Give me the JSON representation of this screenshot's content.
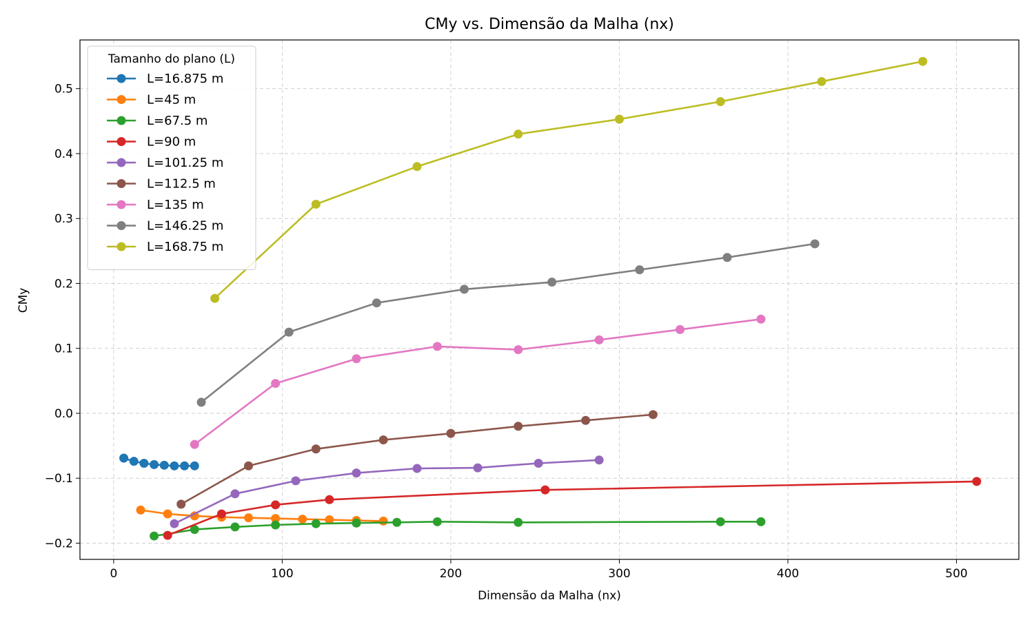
{
  "chart_data": {
    "type": "line",
    "title": "CMy vs. Dimensão da Malha (nx)",
    "xlabel": "Dimensão da Malha (nx)",
    "ylabel": "CMy",
    "xlim": [
      -20,
      537
    ],
    "ylim": [
      -0.225,
      0.575
    ],
    "xticks": [
      0,
      100,
      200,
      300,
      400,
      500
    ],
    "xtick_labels": [
      "0",
      "100",
      "200",
      "300",
      "400",
      "500"
    ],
    "yticks": [
      -0.2,
      -0.1,
      0.0,
      0.1,
      0.2,
      0.3,
      0.4,
      0.5
    ],
    "ytick_labels": [
      "−0.2",
      "−0.1",
      "0.0",
      "0.1",
      "0.2",
      "0.3",
      "0.4",
      "0.5"
    ],
    "grid": true,
    "legend": {
      "title": "Tamanho do plano (L)",
      "placement": "top-left"
    },
    "series": [
      {
        "name": "L=16.875 m",
        "color": "#1f77b4",
        "x": [
          6,
          12,
          18,
          24,
          30,
          36,
          42,
          48
        ],
        "y": [
          -0.069,
          -0.074,
          -0.077,
          -0.079,
          -0.08,
          -0.081,
          -0.081,
          -0.081
        ]
      },
      {
        "name": "L=45 m",
        "color": "#ff7f0e",
        "x": [
          16,
          32,
          48,
          64,
          80,
          96,
          112,
          128,
          144,
          160
        ],
        "y": [
          -0.149,
          -0.155,
          -0.158,
          -0.16,
          -0.161,
          -0.162,
          -0.163,
          -0.164,
          -0.165,
          -0.166
        ]
      },
      {
        "name": "L=67.5 m",
        "color": "#2ca02c",
        "x": [
          24,
          48,
          72,
          96,
          120,
          144,
          168,
          192,
          240,
          360,
          384
        ],
        "y": [
          -0.189,
          -0.179,
          -0.175,
          -0.172,
          -0.17,
          -0.169,
          -0.168,
          -0.167,
          -0.168,
          -0.167,
          -0.167
        ]
      },
      {
        "name": "L=90 m",
        "color": "#d62728",
        "x": [
          32,
          64,
          96,
          128,
          256,
          512
        ],
        "y": [
          -0.188,
          -0.155,
          -0.141,
          -0.133,
          -0.118,
          -0.105
        ]
      },
      {
        "name": "L=101.25 m",
        "color": "#9467bd",
        "x": [
          36,
          72,
          108,
          144,
          180,
          216,
          252,
          288
        ],
        "y": [
          -0.17,
          -0.124,
          -0.104,
          -0.092,
          -0.085,
          -0.084,
          -0.077,
          -0.072
        ]
      },
      {
        "name": "L=112.5 m",
        "color": "#8c564b",
        "x": [
          40,
          80,
          120,
          160,
          200,
          240,
          280,
          320
        ],
        "y": [
          -0.14,
          -0.081,
          -0.055,
          -0.041,
          -0.031,
          -0.02,
          -0.011,
          -0.002
        ]
      },
      {
        "name": "L=135 m",
        "color": "#e377c2",
        "x": [
          48,
          96,
          144,
          192,
          240,
          288,
          336,
          384
        ],
        "y": [
          -0.048,
          0.046,
          0.084,
          0.103,
          0.098,
          0.113,
          0.129,
          0.145
        ]
      },
      {
        "name": "L=146.25 m",
        "color": "#7f7f7f",
        "x": [
          52,
          104,
          156,
          208,
          260,
          312,
          364,
          416
        ],
        "y": [
          0.017,
          0.125,
          0.17,
          0.191,
          0.202,
          0.221,
          0.24,
          0.261
        ]
      },
      {
        "name": "L=168.75 m",
        "color": "#bcbd22",
        "x": [
          60,
          120,
          180,
          240,
          300,
          360,
          420,
          480
        ],
        "y": [
          0.177,
          0.322,
          0.38,
          0.43,
          0.453,
          0.48,
          0.511,
          0.542
        ]
      }
    ]
  }
}
